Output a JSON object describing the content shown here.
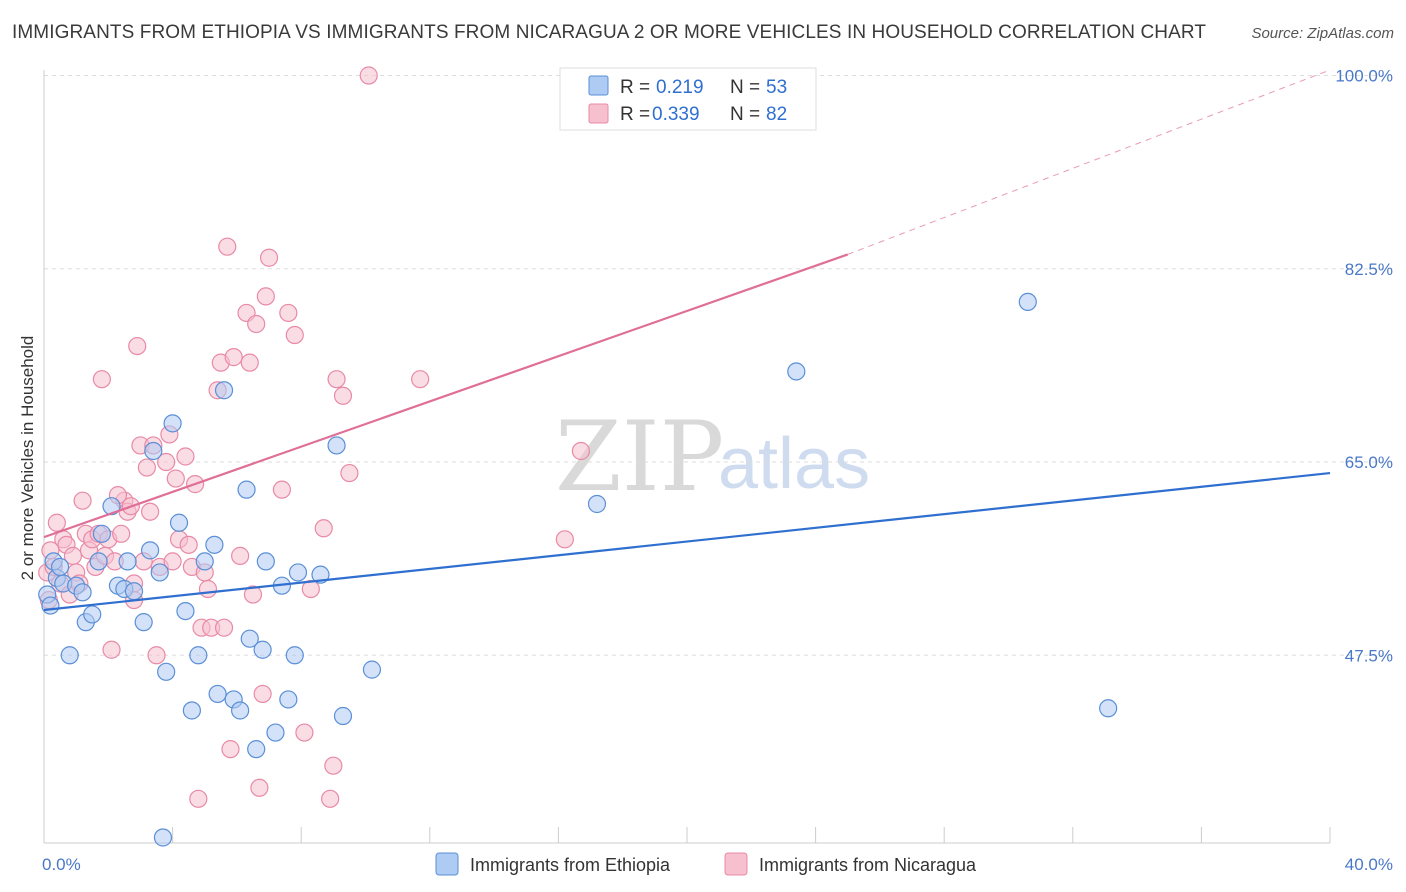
{
  "title": "IMMIGRANTS FROM ETHIOPIA VS IMMIGRANTS FROM NICARAGUA 2 OR MORE VEHICLES IN HOUSEHOLD CORRELATION CHART",
  "source": "Source: ZipAtlas.com",
  "watermark": {
    "zip": "ZIP",
    "atlas": "atlas"
  },
  "colors": {
    "ethiopia_fill": "#aecbf3",
    "ethiopia_stroke": "#5b8fd6",
    "ethiopia_line": "#2f6fcf",
    "nicaragua_fill": "#f6c0cf",
    "nicaragua_stroke": "#e88aa6",
    "nicaragua_line": "#e06f97",
    "tick_color": "#4a78c8",
    "grid": "#dddddd"
  },
  "legend": {
    "r_label": "R =",
    "n_label": "N =",
    "ethiopia": {
      "r": "0.219",
      "n": "53"
    },
    "nicaragua": {
      "r": "0.339",
      "n": "82"
    }
  },
  "chart_data": {
    "type": "scatter",
    "title": "IMMIGRANTS FROM ETHIOPIA VS IMMIGRANTS FROM NICARAGUA 2 OR MORE VEHICLES IN HOUSEHOLD CORRELATION CHART",
    "xlabel": "",
    "ylabel": "2 or more Vehicles in Household",
    "xlim": [
      0,
      40
    ],
    "ylim": [
      30.5,
      100.5
    ],
    "x_tick_labels": [
      {
        "value": 0,
        "label": "0.0%"
      },
      {
        "value": 40,
        "label": "40.0%"
      }
    ],
    "y_tick_labels": [
      {
        "value": 47.5,
        "label": "47.5%"
      },
      {
        "value": 65.0,
        "label": "65.0%"
      },
      {
        "value": 82.5,
        "label": "82.5%"
      },
      {
        "value": 100.0,
        "label": "100.0%"
      }
    ],
    "series": [
      {
        "name": "Immigrants from Ethiopia",
        "points": [
          [
            0.1,
            53.0
          ],
          [
            0.3,
            56.0
          ],
          [
            0.4,
            54.5
          ],
          [
            0.6,
            54.0
          ],
          [
            0.8,
            47.5
          ],
          [
            1.0,
            53.8
          ],
          [
            1.3,
            50.5
          ],
          [
            1.5,
            51.2
          ],
          [
            1.7,
            56.0
          ],
          [
            1.8,
            58.5
          ],
          [
            2.1,
            61.0
          ],
          [
            2.3,
            53.8
          ],
          [
            2.5,
            53.5
          ],
          [
            2.6,
            56.0
          ],
          [
            2.8,
            53.3
          ],
          [
            3.1,
            50.5
          ],
          [
            3.3,
            57.0
          ],
          [
            3.4,
            66.0
          ],
          [
            3.6,
            55.0
          ],
          [
            3.8,
            46.0
          ],
          [
            4.0,
            68.5
          ],
          [
            4.2,
            59.5
          ],
          [
            4.4,
            51.5
          ],
          [
            4.6,
            42.5
          ],
          [
            4.8,
            47.5
          ],
          [
            5.0,
            56.0
          ],
          [
            5.3,
            57.5
          ],
          [
            5.4,
            44.0
          ],
          [
            5.6,
            71.5
          ],
          [
            5.9,
            43.5
          ],
          [
            6.1,
            42.5
          ],
          [
            6.3,
            62.5
          ],
          [
            6.4,
            49.0
          ],
          [
            6.6,
            39.0
          ],
          [
            6.8,
            48.0
          ],
          [
            6.9,
            56.0
          ],
          [
            7.2,
            40.5
          ],
          [
            7.4,
            53.8
          ],
          [
            7.6,
            43.5
          ],
          [
            7.8,
            47.5
          ],
          [
            7.9,
            55.0
          ],
          [
            8.6,
            54.8
          ],
          [
            9.1,
            66.5
          ],
          [
            9.3,
            42.0
          ],
          [
            10.2,
            46.2
          ],
          [
            17.2,
            61.2
          ],
          [
            23.4,
            73.2
          ],
          [
            30.6,
            79.5
          ],
          [
            33.1,
            42.7
          ],
          [
            3.7,
            31.0
          ],
          [
            0.2,
            52.0
          ],
          [
            0.5,
            55.5
          ],
          [
            1.2,
            53.2
          ]
        ],
        "trend": {
          "x0": 0,
          "y0": 51.6,
          "x1": 40,
          "y1": 64.0
        }
      },
      {
        "name": "Immigrants from Nicaragua",
        "points": [
          [
            0.1,
            55.0
          ],
          [
            0.2,
            57.0
          ],
          [
            0.3,
            55.5
          ],
          [
            0.4,
            59.5
          ],
          [
            0.5,
            54.0
          ],
          [
            0.6,
            58.0
          ],
          [
            0.7,
            57.5
          ],
          [
            0.8,
            53.0
          ],
          [
            0.9,
            56.5
          ],
          [
            1.0,
            55.0
          ],
          [
            1.1,
            54.0
          ],
          [
            1.2,
            61.5
          ],
          [
            1.3,
            58.5
          ],
          [
            1.4,
            57.0
          ],
          [
            1.5,
            58.0
          ],
          [
            1.6,
            55.5
          ],
          [
            1.7,
            58.5
          ],
          [
            1.8,
            72.5
          ],
          [
            1.9,
            56.5
          ],
          [
            2.0,
            58.0
          ],
          [
            2.1,
            48.0
          ],
          [
            2.2,
            56.0
          ],
          [
            2.4,
            58.5
          ],
          [
            2.5,
            61.5
          ],
          [
            2.6,
            60.5
          ],
          [
            2.7,
            61.0
          ],
          [
            2.8,
            54.0
          ],
          [
            2.8,
            52.5
          ],
          [
            2.9,
            75.5
          ],
          [
            3.0,
            66.5
          ],
          [
            3.1,
            56.0
          ],
          [
            3.2,
            64.5
          ],
          [
            3.4,
            66.5
          ],
          [
            3.5,
            47.5
          ],
          [
            3.6,
            55.5
          ],
          [
            3.8,
            65.0
          ],
          [
            3.9,
            67.5
          ],
          [
            4.0,
            56.0
          ],
          [
            4.1,
            63.5
          ],
          [
            4.2,
            58.0
          ],
          [
            4.4,
            65.5
          ],
          [
            4.6,
            55.5
          ],
          [
            4.7,
            63.0
          ],
          [
            4.8,
            34.5
          ],
          [
            4.9,
            50.0
          ],
          [
            5.0,
            55.0
          ],
          [
            5.1,
            53.5
          ],
          [
            5.2,
            50.0
          ],
          [
            5.4,
            71.5
          ],
          [
            5.5,
            74.0
          ],
          [
            5.6,
            50.0
          ],
          [
            5.7,
            84.5
          ],
          [
            5.8,
            39.0
          ],
          [
            5.9,
            74.5
          ],
          [
            6.1,
            56.5
          ],
          [
            6.3,
            78.5
          ],
          [
            6.4,
            74.0
          ],
          [
            6.5,
            53.0
          ],
          [
            6.6,
            77.5
          ],
          [
            6.7,
            35.5
          ],
          [
            6.8,
            44.0
          ],
          [
            6.9,
            80.0
          ],
          [
            7.0,
            83.5
          ],
          [
            7.4,
            62.5
          ],
          [
            7.6,
            78.5
          ],
          [
            7.8,
            76.5
          ],
          [
            8.1,
            40.5
          ],
          [
            8.3,
            53.5
          ],
          [
            8.7,
            59.0
          ],
          [
            8.9,
            34.5
          ],
          [
            9.0,
            37.5
          ],
          [
            9.1,
            72.5
          ],
          [
            9.3,
            71.0
          ],
          [
            9.5,
            64.0
          ],
          [
            10.1,
            100.0
          ],
          [
            11.7,
            72.5
          ],
          [
            16.2,
            58.0
          ],
          [
            16.7,
            66.0
          ],
          [
            0.15,
            52.5
          ],
          [
            2.3,
            62.0
          ],
          [
            3.3,
            60.5
          ],
          [
            4.5,
            57.5
          ]
        ],
        "trend": {
          "x0": 0,
          "y0": 58.2,
          "x1": 25,
          "y1": 83.8,
          "dash_x1": 40,
          "dash_y1": 100.5
        }
      }
    ]
  },
  "bottom_legend": {
    "ethiopia_label": "Immigrants from Ethiopia",
    "nicaragua_label": "Immigrants from Nicaragua"
  }
}
